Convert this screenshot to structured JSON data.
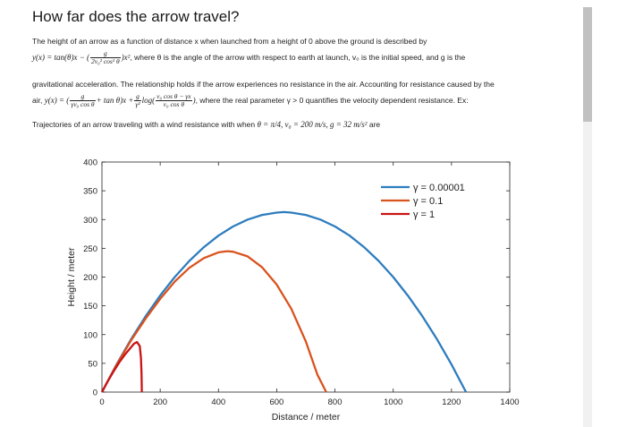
{
  "page": {
    "title": "How far does the arrow travel?",
    "para1": {
      "line1": "The height of an arrow as a function of distance x when launched from a height of 0 above the ground is described by",
      "eq1_lhs": "y(x) = tan(θ)x − (",
      "eq1_frac_num": "g",
      "eq1_frac_den": "2v₀² cos² θ",
      "eq1_rhs": ")x²",
      "line2_rest": ", where θ is the angle of the arrow with respect to earth at launch, v₀ is the initial speed, and g is the"
    },
    "para2": {
      "line1": "gravitational acceleration.  The relationship holds if the arrow experiences no resistance in the air.  Accounting for resistance caused by the",
      "line2_prefix": "air, ",
      "eq2_lhs": "y(x) = (",
      "eq2_frac1_num": "g",
      "eq2_frac1_den": "γv₀ cos θ",
      "eq2_mid": "+ tan θ)x +",
      "eq2_frac2_num": "g",
      "eq2_frac2_den": "γ²",
      "eq2_log": "log(",
      "eq2_frac3_num": "v₀ cos θ − γx",
      "eq2_frac3_den": "v₀ cos θ",
      "eq2_close": ")",
      "line2_rest": ", where the real parameter γ > 0 quantifies the velocity dependent resistance.  Ex:"
    },
    "para3": {
      "prefix": "Trajectories of an arrow traveling with a wind resistance with when ",
      "math": "θ = π/4,  v₀ = 200  m/s,  g = 32  m/s²",
      "suffix": " are"
    }
  },
  "chart_data": {
    "type": "line",
    "title": "",
    "xlabel": "Distance / meter",
    "ylabel": "Height / meter",
    "xlim": [
      0,
      1400
    ],
    "ylim": [
      0,
      400
    ],
    "xticks": [
      0,
      200,
      400,
      600,
      800,
      1000,
      1200,
      1400
    ],
    "yticks": [
      0,
      50,
      100,
      150,
      200,
      250,
      300,
      350,
      400
    ],
    "grid": false,
    "legend_position": "top-right",
    "series": [
      {
        "name": "γ = 0.00001",
        "color": "#2e7dbe",
        "x": [
          0,
          50,
          100,
          150,
          200,
          250,
          300,
          350,
          400,
          450,
          500,
          550,
          600,
          625,
          650,
          700,
          750,
          800,
          850,
          900,
          950,
          1000,
          1050,
          1100,
          1150,
          1200,
          1250
        ],
        "y": [
          0,
          48,
          92,
          132,
          168,
          200,
          228,
          252,
          272,
          288,
          300,
          308,
          312,
          313,
          312,
          308,
          300,
          288,
          272,
          252,
          228,
          200,
          168,
          132,
          92,
          48,
          0
        ]
      },
      {
        "name": "γ = 0.1",
        "color": "#d9531e",
        "x": [
          0,
          50,
          100,
          150,
          200,
          250,
          300,
          350,
          400,
          430,
          450,
          500,
          550,
          600,
          650,
          700,
          740,
          770
        ],
        "y": [
          0,
          47,
          90,
          128,
          162,
          192,
          216,
          233,
          243,
          245,
          244,
          236,
          217,
          187,
          145,
          88,
          30,
          0
        ]
      },
      {
        "name": "γ = 1",
        "color": "#c81414",
        "x": [
          0,
          20,
          40,
          60,
          80,
          100,
          110,
          120,
          130,
          134,
          136,
          137
        ],
        "y": [
          0,
          19,
          36,
          52,
          66,
          78,
          84,
          87,
          80,
          60,
          30,
          0
        ]
      }
    ]
  }
}
